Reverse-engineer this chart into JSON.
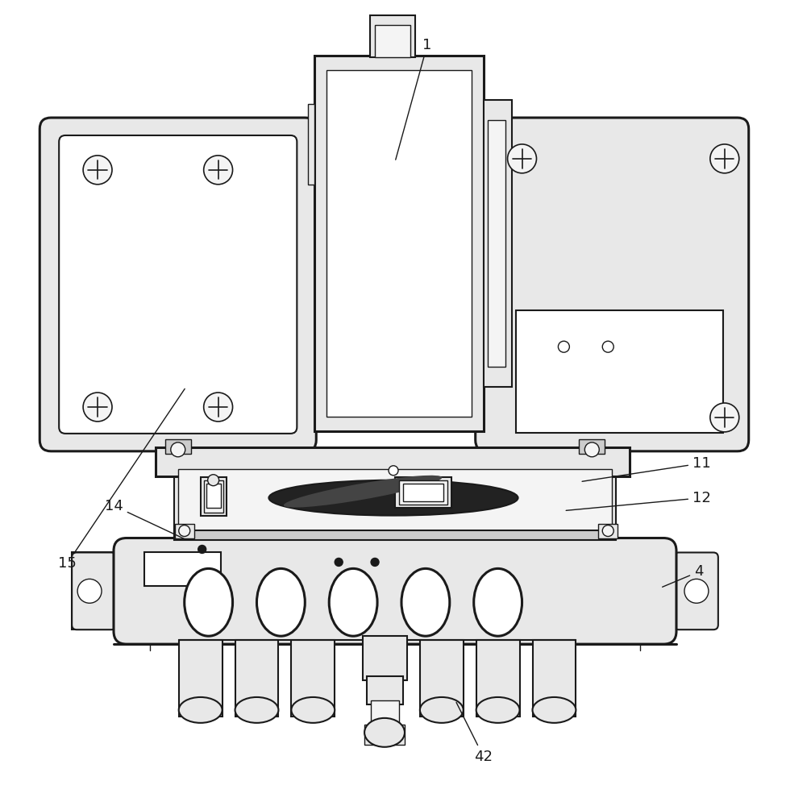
{
  "bg_color": "#ffffff",
  "line_color": "#1a1a1a",
  "fill_light": "#e8e8e8",
  "fill_lighter": "#f4f4f4",
  "fill_white": "#ffffff",
  "fill_dark": "#222222",
  "fill_mid": "#cccccc",
  "lw_thin": 1.0,
  "lw_med": 1.5,
  "lw_thick": 2.2,
  "label_fontsize": 13
}
